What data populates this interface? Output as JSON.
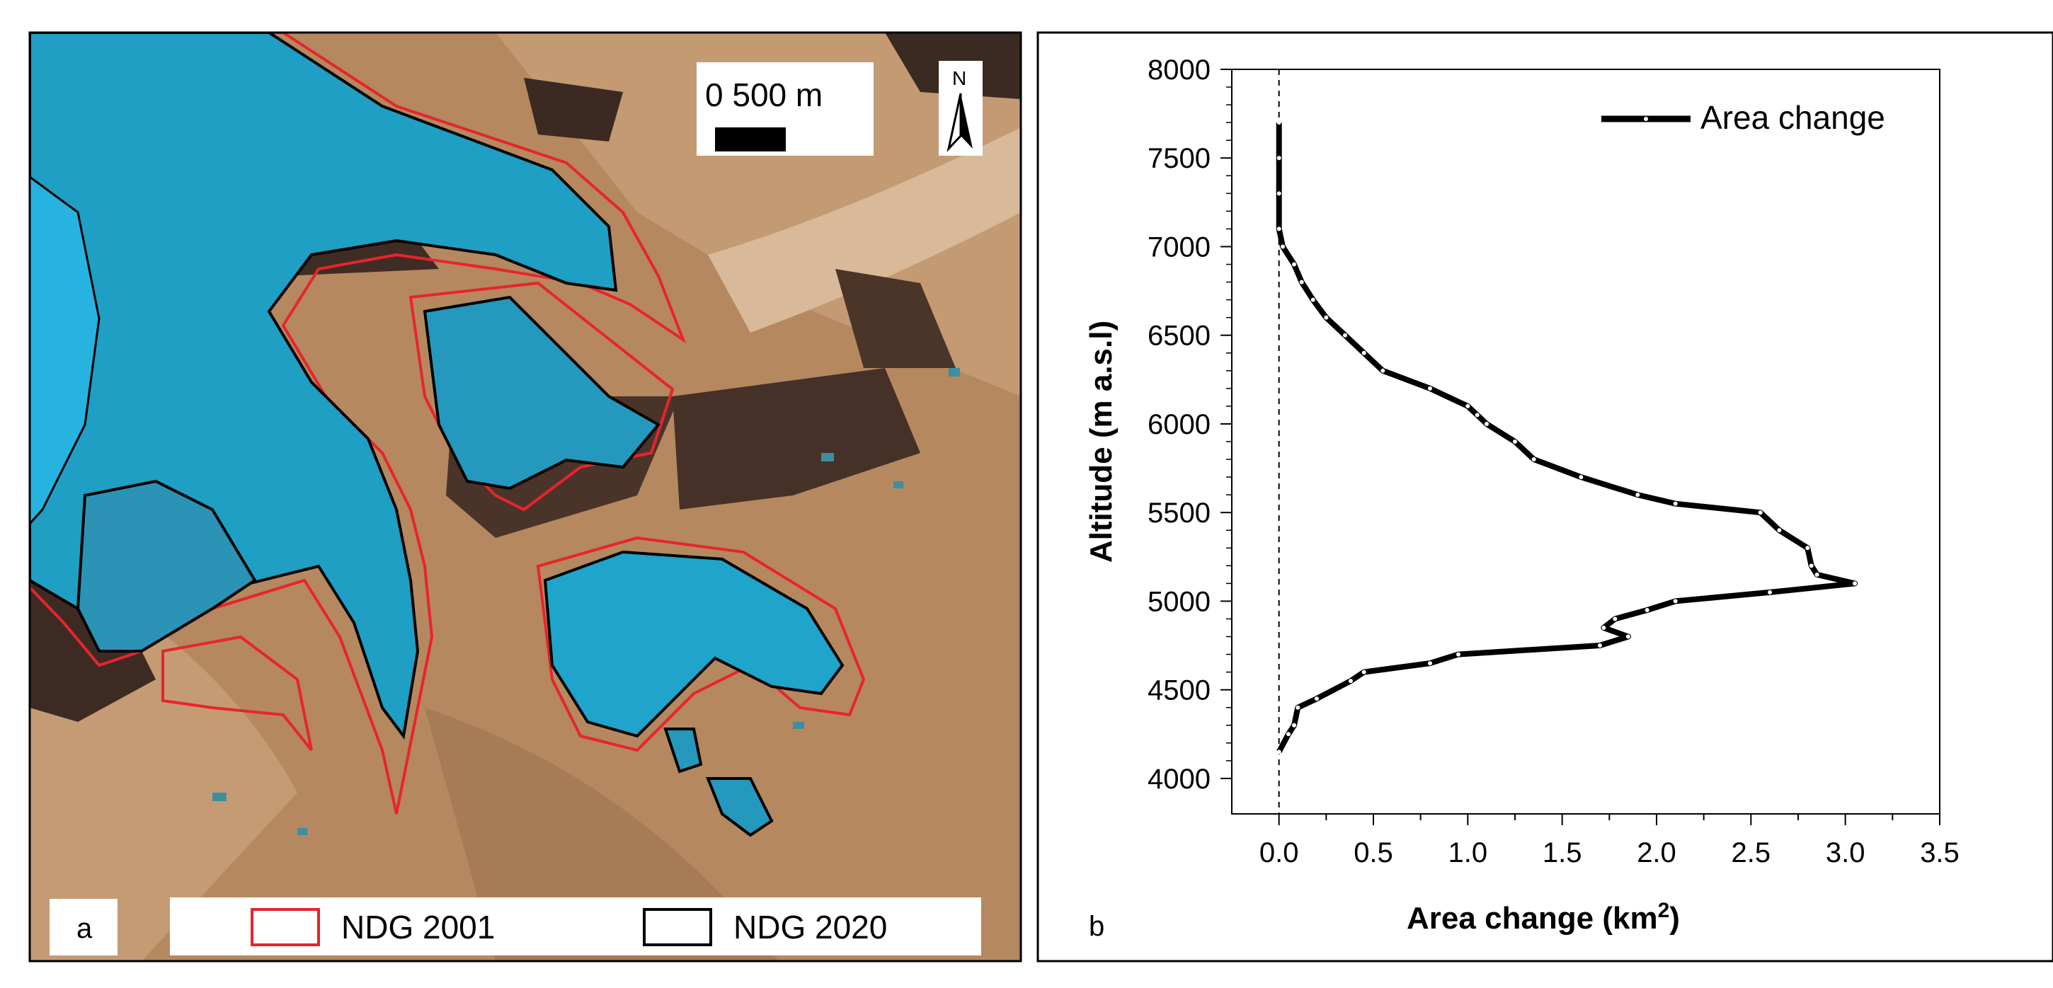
{
  "panel_a": {
    "label": "a",
    "scale_bar": {
      "text": "0  500 m"
    },
    "north_arrow": {
      "label": "N"
    },
    "legend": [
      {
        "label": "NDG 2001",
        "color": "#e8242c"
      },
      {
        "label": "NDG 2020",
        "color": "#000000"
      }
    ],
    "colors": {
      "glacier": "#1e9fc3",
      "terrain": "#b78a63",
      "shadow": "#3a2a22"
    }
  },
  "panel_b": {
    "label": "b"
  },
  "chart_data": {
    "type": "line",
    "title": "",
    "xlabel": "Area change (km",
    "xlabel_sup": "2",
    "xlabel_end": ")",
    "ylabel": "Altitude (m a.s.l)",
    "xlim": [
      -0.25,
      3.5
    ],
    "ylim": [
      3800,
      8000
    ],
    "xticks": [
      0.0,
      0.5,
      1.0,
      1.5,
      2.0,
      2.5,
      3.0,
      3.5
    ],
    "xtick_labels": [
      "0.0",
      "0.5",
      "1.0",
      "1.5",
      "2.0",
      "2.5",
      "3.0",
      "3.5"
    ],
    "yticks": [
      4000,
      4500,
      5000,
      5500,
      6000,
      6500,
      7000,
      7500,
      8000
    ],
    "ytick_labels": [
      "4000",
      "4500",
      "5000",
      "5500",
      "6000",
      "6500",
      "7000",
      "7500",
      "8000"
    ],
    "zero_line": 0,
    "legend": {
      "position": "top-right",
      "entries": [
        "Area change"
      ]
    },
    "series": [
      {
        "name": "Area change",
        "color": "#000000",
        "points": [
          {
            "alt": 4150,
            "x": 0.0
          },
          {
            "alt": 4250,
            "x": 0.05
          },
          {
            "alt": 4300,
            "x": 0.08
          },
          {
            "alt": 4400,
            "x": 0.1
          },
          {
            "alt": 4450,
            "x": 0.2
          },
          {
            "alt": 4550,
            "x": 0.38
          },
          {
            "alt": 4600,
            "x": 0.45
          },
          {
            "alt": 4650,
            "x": 0.8
          },
          {
            "alt": 4700,
            "x": 0.95
          },
          {
            "alt": 4750,
            "x": 1.7
          },
          {
            "alt": 4800,
            "x": 1.85
          },
          {
            "alt": 4850,
            "x": 1.72
          },
          {
            "alt": 4900,
            "x": 1.78
          },
          {
            "alt": 4950,
            "x": 1.95
          },
          {
            "alt": 5000,
            "x": 2.1
          },
          {
            "alt": 5050,
            "x": 2.6
          },
          {
            "alt": 5100,
            "x": 3.05
          },
          {
            "alt": 5150,
            "x": 2.85
          },
          {
            "alt": 5200,
            "x": 2.82
          },
          {
            "alt": 5300,
            "x": 2.8
          },
          {
            "alt": 5400,
            "x": 2.65
          },
          {
            "alt": 5500,
            "x": 2.55
          },
          {
            "alt": 5550,
            "x": 2.1
          },
          {
            "alt": 5600,
            "x": 1.9
          },
          {
            "alt": 5700,
            "x": 1.6
          },
          {
            "alt": 5800,
            "x": 1.35
          },
          {
            "alt": 5900,
            "x": 1.25
          },
          {
            "alt": 6000,
            "x": 1.1
          },
          {
            "alt": 6050,
            "x": 1.05
          },
          {
            "alt": 6100,
            "x": 1.0
          },
          {
            "alt": 6200,
            "x": 0.8
          },
          {
            "alt": 6300,
            "x": 0.55
          },
          {
            "alt": 6400,
            "x": 0.45
          },
          {
            "alt": 6500,
            "x": 0.35
          },
          {
            "alt": 6600,
            "x": 0.25
          },
          {
            "alt": 6700,
            "x": 0.18
          },
          {
            "alt": 6800,
            "x": 0.12
          },
          {
            "alt": 6900,
            "x": 0.08
          },
          {
            "alt": 7000,
            "x": 0.02
          },
          {
            "alt": 7100,
            "x": 0.0
          },
          {
            "alt": 7300,
            "x": 0.0
          },
          {
            "alt": 7500,
            "x": 0.0
          },
          {
            "alt": 7700,
            "x": 0.0
          }
        ]
      }
    ]
  }
}
